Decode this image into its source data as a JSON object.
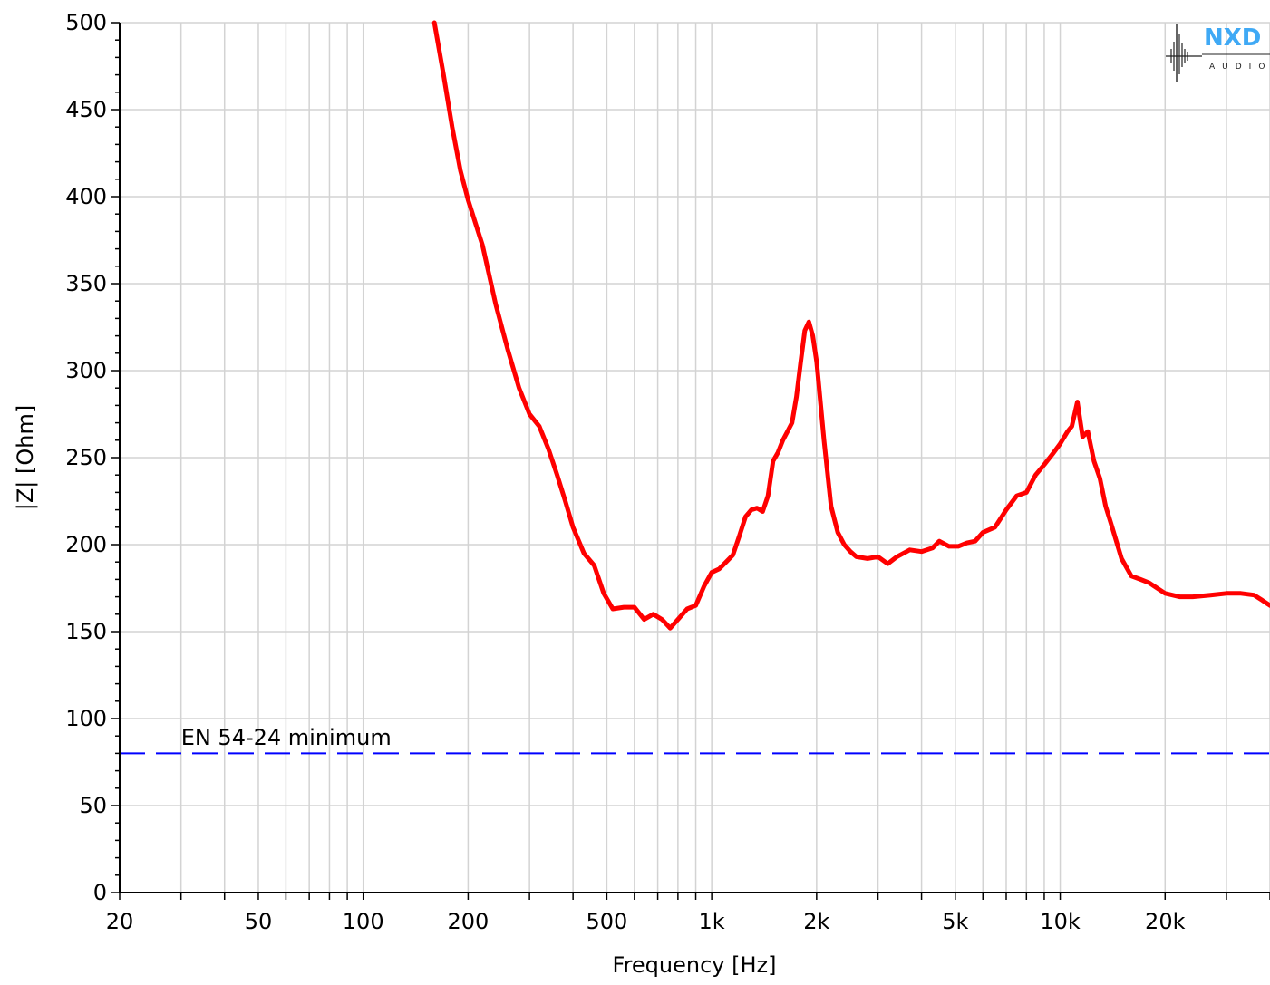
{
  "chart_data": {
    "type": "line",
    "title": "",
    "xlabel": "Frequency [Hz]",
    "ylabel": "|Z| [Ohm]",
    "xscale": "log",
    "xlim": [
      20,
      40000
    ],
    "ylim": [
      0,
      500
    ],
    "grid": true,
    "x_ticks": [
      {
        "value": 20,
        "label": "20"
      },
      {
        "value": 50,
        "label": "50"
      },
      {
        "value": 100,
        "label": "100"
      },
      {
        "value": 200,
        "label": "200"
      },
      {
        "value": 500,
        "label": "500"
      },
      {
        "value": 1000,
        "label": "1k"
      },
      {
        "value": 2000,
        "label": "2k"
      },
      {
        "value": 5000,
        "label": "5k"
      },
      {
        "value": 10000,
        "label": "10k"
      },
      {
        "value": 20000,
        "label": "20k"
      }
    ],
    "y_ticks": [
      {
        "value": 0,
        "label": "0"
      },
      {
        "value": 50,
        "label": "50"
      },
      {
        "value": 100,
        "label": "100"
      },
      {
        "value": 150,
        "label": "150"
      },
      {
        "value": 200,
        "label": "200"
      },
      {
        "value": 250,
        "label": "250"
      },
      {
        "value": 300,
        "label": "300"
      },
      {
        "value": 350,
        "label": "350"
      },
      {
        "value": 400,
        "label": "400"
      },
      {
        "value": 450,
        "label": "450"
      },
      {
        "value": 500,
        "label": "500"
      }
    ],
    "series": [
      {
        "color": "#ff0000",
        "x": [
          160,
          170,
          180,
          190,
          200,
          220,
          240,
          260,
          280,
          300,
          320,
          340,
          360,
          380,
          400,
          430,
          460,
          490,
          520,
          560,
          600,
          640,
          680,
          720,
          760,
          800,
          850,
          900,
          950,
          1000,
          1050,
          1100,
          1150,
          1200,
          1250,
          1300,
          1350,
          1400,
          1450,
          1500,
          1550,
          1600,
          1650,
          1700,
          1750,
          1800,
          1850,
          1900,
          1950,
          2000,
          2100,
          2200,
          2300,
          2400,
          2500,
          2600,
          2800,
          3000,
          3200,
          3400,
          3700,
          4000,
          4300,
          4500,
          4800,
          5100,
          5400,
          5700,
          6000,
          6500,
          7000,
          7500,
          8000,
          8500,
          9000,
          9500,
          10000,
          10500,
          10800,
          11200,
          11600,
          12000,
          12500,
          13000,
          13500,
          14000,
          15000,
          16000,
          17000,
          18000,
          20000,
          22000,
          24000,
          27000,
          30000,
          33000,
          36000,
          38000,
          40000
        ],
        "y": [
          500,
          470,
          440,
          415,
          398,
          372,
          338,
          312,
          290,
          275,
          268,
          255,
          240,
          225,
          210,
          195,
          188,
          172,
          163,
          164,
          164,
          157,
          160,
          157,
          152,
          157,
          163,
          165,
          176,
          184,
          186,
          190,
          194,
          205,
          216,
          220,
          221,
          219,
          228,
          248,
          253,
          260,
          265,
          270,
          285,
          305,
          323,
          328,
          320,
          305,
          260,
          222,
          207,
          200,
          196,
          193,
          192,
          193,
          189,
          193,
          197,
          196,
          198,
          202,
          199,
          199,
          201,
          202,
          207,
          210,
          220,
          228,
          230,
          240,
          246,
          252,
          258,
          265,
          268,
          282,
          262,
          265,
          248,
          238,
          222,
          212,
          192,
          182,
          180,
          178,
          172,
          170,
          170,
          171,
          172,
          172,
          171,
          168,
          165
        ]
      },
      {
        "color": "#0000ff",
        "style": "dashed",
        "x": [
          20,
          40000
        ],
        "y": [
          80,
          80
        ]
      }
    ],
    "annotations": [
      {
        "text": "EN 54-24 minimum",
        "x": 30,
        "y": 85
      }
    ]
  },
  "logo": {
    "text": "NXD",
    "sub": "AUDIO",
    "color": "#3fa9f5"
  }
}
